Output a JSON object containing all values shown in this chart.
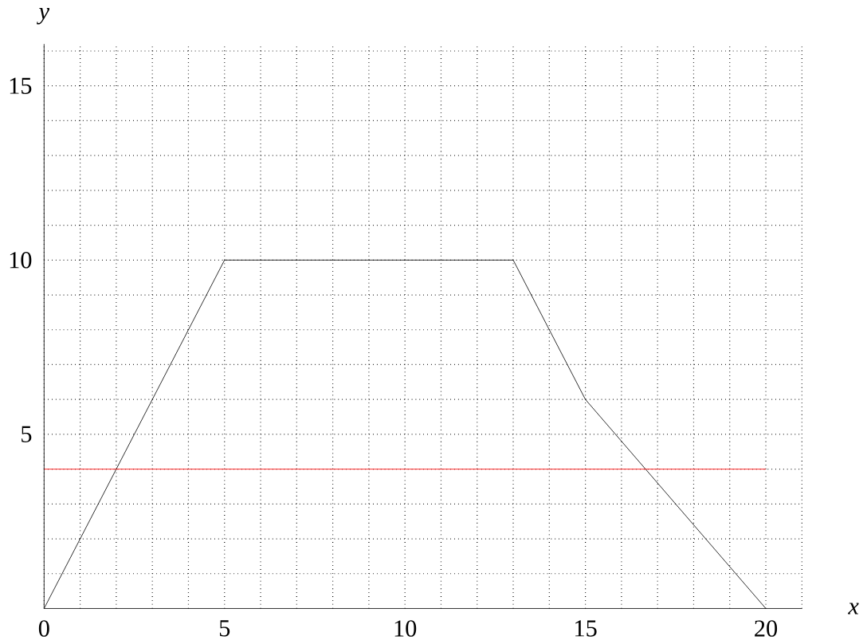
{
  "chart_data": {
    "type": "line",
    "xlabel": "x",
    "ylabel": "y",
    "xlim": [
      0,
      21
    ],
    "ylim": [
      0,
      16.2
    ],
    "xticks": [
      0,
      {
        "value": 1,
        "label": null
      },
      {
        "value": 2,
        "label": null
      },
      {
        "value": 3,
        "label": null
      },
      {
        "value": 4,
        "label": null
      },
      5,
      {
        "value": 6,
        "label": null
      },
      {
        "value": 7,
        "label": null
      },
      {
        "value": 8,
        "label": null
      },
      {
        "value": 9,
        "label": null
      },
      10,
      {
        "value": 11,
        "label": null
      },
      {
        "value": 12,
        "label": null
      },
      {
        "value": 13,
        "label": null
      },
      {
        "value": 14,
        "label": null
      },
      15,
      {
        "value": 16,
        "label": null
      },
      {
        "value": 17,
        "label": null
      },
      {
        "value": 18,
        "label": null
      },
      {
        "value": 19,
        "label": null
      },
      20,
      {
        "value": 21,
        "label": null
      }
    ],
    "yticks": [
      {
        "value": 1,
        "label": null
      },
      {
        "value": 2,
        "label": null
      },
      {
        "value": 3,
        "label": null
      },
      {
        "value": 4,
        "label": null
      },
      5,
      {
        "value": 6,
        "label": null
      },
      {
        "value": 7,
        "label": null
      },
      {
        "value": 8,
        "label": null
      },
      {
        "value": 9,
        "label": null
      },
      10,
      {
        "value": 11,
        "label": null
      },
      {
        "value": 12,
        "label": null
      },
      {
        "value": 13,
        "label": null
      },
      {
        "value": 14,
        "label": null
      },
      15,
      {
        "value": 16,
        "label": null
      }
    ],
    "grid": true,
    "line_style": "solid",
    "series": [
      {
        "color": "#000000",
        "x": [
          0,
          5,
          13,
          15,
          20
        ],
        "values": [
          0,
          10,
          10,
          6,
          0
        ]
      },
      {
        "color": "#ff0000",
        "x": [
          0,
          20
        ],
        "values": [
          4,
          4
        ]
      }
    ]
  }
}
